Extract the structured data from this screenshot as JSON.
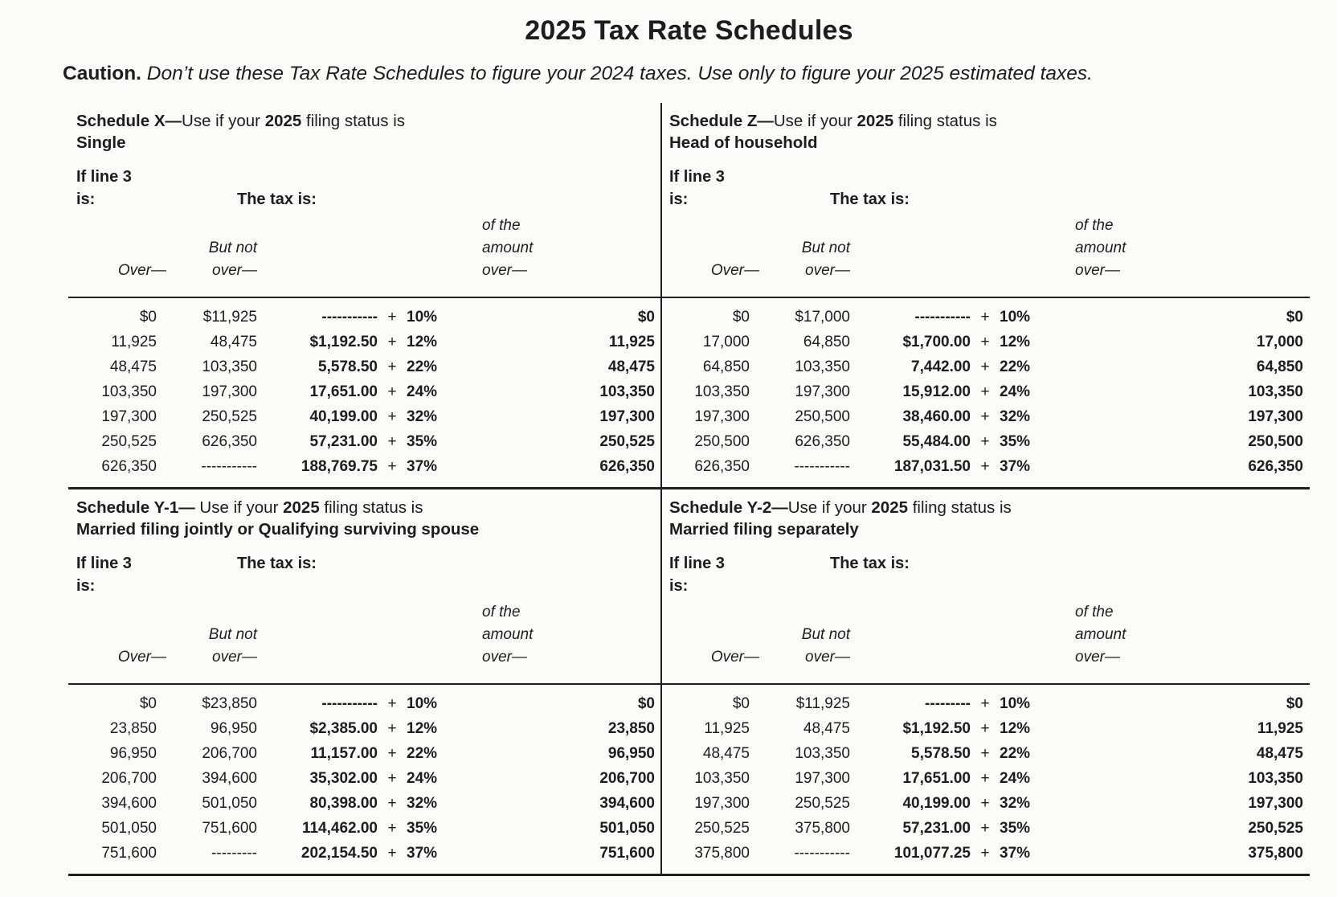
{
  "page": {
    "title": "2025 Tax Rate Schedules",
    "caution_label": "Caution.",
    "caution_text": " Don’t use these Tax Rate Schedules to figure your 2024 taxes. Use only to figure your 2025 estimated taxes."
  },
  "labels": {
    "if_line": "If line 3",
    "is": "is:",
    "tax_is": "The tax is:",
    "over": "Over—",
    "but_not": "But not",
    "over_dash": "over—",
    "of_the": "of the",
    "amount": "amount",
    "plus": "+"
  },
  "schedules": [
    {
      "id": "X",
      "title_bold": "Schedule X—",
      "title_mid": "Use if your ",
      "title_year": "2025",
      "title_rest": " filing status is",
      "status": "Single",
      "rows": [
        {
          "over": "$0",
          "but_not_over": "$11,925",
          "base": "-----------",
          "rate": "10%",
          "excess_over": "$0"
        },
        {
          "over": "11,925",
          "but_not_over": "48,475",
          "base": "$1,192.50",
          "rate": "12%",
          "excess_over": "11,925"
        },
        {
          "over": "48,475",
          "but_not_over": "103,350",
          "base": "5,578.50",
          "rate": "22%",
          "excess_over": "48,475"
        },
        {
          "over": "103,350",
          "but_not_over": "197,300",
          "base": "17,651.00",
          "rate": "24%",
          "excess_over": "103,350"
        },
        {
          "over": "197,300",
          "but_not_over": "250,525",
          "base": "40,199.00",
          "rate": "32%",
          "excess_over": "197,300"
        },
        {
          "over": "250,525",
          "but_not_over": "626,350",
          "base": "57,231.00",
          "rate": "35%",
          "excess_over": "250,525"
        },
        {
          "over": "626,350",
          "but_not_over": "-----------",
          "base": "188,769.75",
          "rate": "37%",
          "excess_over": "626,350"
        }
      ]
    },
    {
      "id": "Z",
      "title_bold": "Schedule Z—",
      "title_mid": "Use if your ",
      "title_year": "2025",
      "title_rest": " filing status is",
      "status": "Head of household",
      "rows": [
        {
          "over": "$0",
          "but_not_over": "$17,000",
          "base": "-----------",
          "rate": "10%",
          "excess_over": "$0"
        },
        {
          "over": "17,000",
          "but_not_over": "64,850",
          "base": "$1,700.00",
          "rate": "12%",
          "excess_over": "17,000"
        },
        {
          "over": "64,850",
          "but_not_over": "103,350",
          "base": "7,442.00",
          "rate": "22%",
          "excess_over": "64,850"
        },
        {
          "over": "103,350",
          "but_not_over": "197,300",
          "base": "15,912.00",
          "rate": "24%",
          "excess_over": "103,350"
        },
        {
          "over": "197,300",
          "but_not_over": "250,500",
          "base": "38,460.00",
          "rate": "32%",
          "excess_over": "197,300"
        },
        {
          "over": "250,500",
          "but_not_over": "626,350",
          "base": "55,484.00",
          "rate": "35%",
          "excess_over": "250,500"
        },
        {
          "over": "626,350",
          "but_not_over": "-----------",
          "base": "187,031.50",
          "rate": "37%",
          "excess_over": "626,350"
        }
      ]
    },
    {
      "id": "Y-1",
      "title_bold": "Schedule Y-1—",
      "title_mid": " Use if your ",
      "title_year": "2025",
      "title_rest": " filing status is",
      "status": "Married filing jointly or Qualifying surviving spouse",
      "rows": [
        {
          "over": "$0",
          "but_not_over": "$23,850",
          "base": "-----------",
          "rate": "10%",
          "excess_over": "$0"
        },
        {
          "over": "23,850",
          "but_not_over": "96,950",
          "base": "$2,385.00",
          "rate": "12%",
          "excess_over": "23,850"
        },
        {
          "over": "96,950",
          "but_not_over": "206,700",
          "base": "11,157.00",
          "rate": "22%",
          "excess_over": "96,950"
        },
        {
          "over": "206,700",
          "but_not_over": "394,600",
          "base": "35,302.00",
          "rate": "24%",
          "excess_over": "206,700"
        },
        {
          "over": "394,600",
          "but_not_over": "501,050",
          "base": "80,398.00",
          "rate": "32%",
          "excess_over": "394,600"
        },
        {
          "over": "501,050",
          "but_not_over": "751,600",
          "base": "114,462.00",
          "rate": "35%",
          "excess_over": "501,050"
        },
        {
          "over": "751,600",
          "but_not_over": "---------",
          "base": "202,154.50",
          "rate": "37%",
          "excess_over": "751,600"
        }
      ]
    },
    {
      "id": "Y-2",
      "title_bold": "Schedule Y-2—",
      "title_mid": "Use if your ",
      "title_year": "2025",
      "title_rest": " filing status is",
      "status": "Married filing separately",
      "rows": [
        {
          "over": "$0",
          "but_not_over": "$11,925",
          "base": "---------",
          "rate": "10%",
          "excess_over": "$0"
        },
        {
          "over": "11,925",
          "but_not_over": "48,475",
          "base": "$1,192.50",
          "rate": "12%",
          "excess_over": "11,925"
        },
        {
          "over": "48,475",
          "but_not_over": "103,350",
          "base": "5,578.50",
          "rate": "22%",
          "excess_over": "48,475"
        },
        {
          "over": "103,350",
          "but_not_over": "197,300",
          "base": "17,651.00",
          "rate": "24%",
          "excess_over": "103,350"
        },
        {
          "over": "197,300",
          "but_not_over": "250,525",
          "base": "40,199.00",
          "rate": "32%",
          "excess_over": "197,300"
        },
        {
          "over": "250,525",
          "but_not_over": "375,800",
          "base": "57,231.00",
          "rate": "35%",
          "excess_over": "250,525"
        },
        {
          "over": "375,800",
          "but_not_over": "-----------",
          "base": "101,077.25",
          "rate": "37%",
          "excess_over": "375,800"
        }
      ]
    }
  ]
}
